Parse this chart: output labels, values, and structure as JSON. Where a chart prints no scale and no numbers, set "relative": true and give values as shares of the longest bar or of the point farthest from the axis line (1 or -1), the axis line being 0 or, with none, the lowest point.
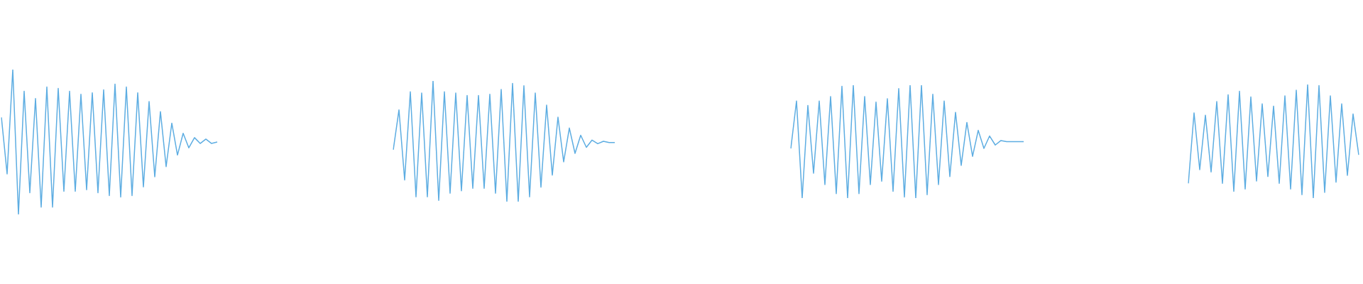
{
  "chart_data": [
    {
      "type": "line",
      "relative": true,
      "categories": [
        null,
        null,
        null,
        null,
        null,
        null,
        null,
        null,
        null,
        null,
        null,
        null,
        null,
        null,
        null,
        null,
        null,
        null,
        null,
        null,
        null,
        null,
        null,
        null,
        null,
        null,
        null,
        null,
        null,
        null,
        null,
        null,
        null,
        null,
        null,
        null,
        null,
        null,
        null
      ],
      "series": [
        {
          "color": "#5dade2",
          "values": [
            0.67,
            0.28,
            1,
            0,
            0.85,
            0.15,
            0.8,
            0.05,
            0.88,
            0.05,
            0.87,
            0.16,
            0.85,
            0.16,
            0.83,
            0.17,
            0.84,
            0.15,
            0.86,
            0.13,
            0.9,
            0.12,
            0.88,
            0.13,
            0.84,
            0.19,
            0.78,
            0.26,
            0.71,
            0.33,
            0.63,
            0.41,
            0.56,
            0.46,
            0.53,
            0.49,
            0.52,
            0.49,
            0.5
          ]
        }
      ]
    },
    {
      "type": "line",
      "relative": true,
      "categories": [
        null,
        null,
        null,
        null,
        null,
        null,
        null,
        null,
        null,
        null,
        null,
        null,
        null,
        null,
        null,
        null,
        null,
        null,
        null,
        null,
        null,
        null,
        null,
        null,
        null,
        null,
        null,
        null,
        null,
        null,
        null,
        null,
        null,
        null,
        null,
        null,
        null,
        null,
        null,
        null
      ],
      "series": [
        {
          "color": "#5dade2",
          "values": [
            0.43,
            0.76,
            0.18,
            0.91,
            0.04,
            0.9,
            0.04,
            1,
            0.01,
            0.91,
            0.07,
            0.9,
            0.09,
            0.88,
            0.11,
            0.88,
            0.11,
            0.89,
            0.07,
            0.93,
            0,
            0.98,
            0,
            0.96,
            0.04,
            0.9,
            0.12,
            0.8,
            0.22,
            0.7,
            0.33,
            0.61,
            0.4,
            0.55,
            0.45,
            0.51,
            0.48,
            0.5,
            0.49,
            0.49
          ]
        }
      ]
    },
    {
      "type": "line",
      "relative": true,
      "categories": [
        null,
        null,
        null,
        null,
        null,
        null,
        null,
        null,
        null,
        null,
        null,
        null,
        null,
        null,
        null,
        null,
        null,
        null,
        null,
        null,
        null,
        null,
        null,
        null,
        null,
        null,
        null,
        null,
        null,
        null,
        null,
        null,
        null,
        null,
        null,
        null,
        null,
        null,
        null,
        null,
        null,
        null
      ],
      "series": [
        {
          "color": "#5dade2",
          "values": [
            0.44,
            0.86,
            0,
            0.82,
            0.22,
            0.86,
            0.12,
            0.9,
            0.04,
            0.99,
            0,
            1,
            0.04,
            0.9,
            0.12,
            0.85,
            0.15,
            0.88,
            0.06,
            0.97,
            0.01,
            1,
            0,
            1,
            0.03,
            0.92,
            0.12,
            0.86,
            0.19,
            0.76,
            0.29,
            0.67,
            0.37,
            0.6,
            0.44,
            0.55,
            0.47,
            0.51,
            0.5,
            0.5,
            0.5,
            0.5
          ]
        }
      ]
    },
    {
      "type": "line",
      "relative": true,
      "categories": [
        null,
        null,
        null,
        null,
        null,
        null,
        null,
        null,
        null,
        null,
        null,
        null,
        null,
        null,
        null,
        null,
        null,
        null,
        null,
        null,
        null,
        null,
        null,
        null,
        null,
        null,
        null,
        null,
        null,
        null,
        null
      ],
      "series": [
        {
          "color": "#5dade2",
          "values": [
            0.13,
            0.75,
            0.25,
            0.73,
            0.23,
            0.85,
            0.13,
            0.91,
            0.06,
            0.94,
            0.08,
            0.89,
            0.15,
            0.83,
            0.19,
            0.81,
            0.13,
            0.9,
            0.08,
            0.95,
            0.03,
            1,
            0,
            0.99,
            0.05,
            0.9,
            0.14,
            0.83,
            0.2,
            0.74,
            0.38
          ]
        }
      ]
    }
  ]
}
